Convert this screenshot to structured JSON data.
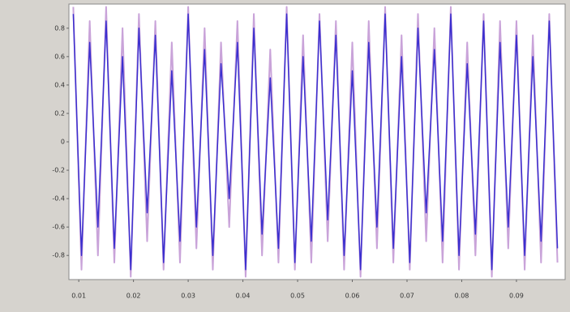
{
  "chart_data": {
    "type": "line",
    "x": [
      0.009,
      0.0105,
      0.012,
      0.0135,
      0.015,
      0.0165,
      0.018,
      0.0195,
      0.021,
      0.0225,
      0.024,
      0.0255,
      0.027,
      0.0285,
      0.03,
      0.0315,
      0.033,
      0.0345,
      0.036,
      0.0375,
      0.039,
      0.0405,
      0.042,
      0.0435,
      0.045,
      0.0465,
      0.048,
      0.0495,
      0.051,
      0.0525,
      0.054,
      0.0555,
      0.057,
      0.0585,
      0.06,
      0.0615,
      0.063,
      0.0645,
      0.066,
      0.0675,
      0.069,
      0.0705,
      0.072,
      0.0735,
      0.075,
      0.0765,
      0.078,
      0.0795,
      0.081,
      0.0825,
      0.084,
      0.0855,
      0.087,
      0.0885,
      0.09,
      0.0915,
      0.093,
      0.0945,
      0.096,
      0.0975
    ],
    "series": [
      {
        "color": "#c9a3d9",
        "values": [
          0.95,
          -0.9,
          0.85,
          -0.8,
          0.95,
          -0.85,
          0.8,
          -0.95,
          0.9,
          -0.7,
          0.85,
          -0.9,
          0.7,
          -0.85,
          0.95,
          -0.75,
          0.8,
          -0.9,
          0.7,
          -0.6,
          0.85,
          -0.95,
          0.9,
          -0.8,
          0.65,
          -0.85,
          0.95,
          -0.9,
          0.75,
          -0.85,
          0.9,
          -0.7,
          0.85,
          -0.9,
          0.7,
          -0.95,
          0.85,
          -0.75,
          0.95,
          -0.85,
          0.75,
          -0.9,
          0.9,
          -0.7,
          0.8,
          -0.85,
          0.95,
          -0.9,
          0.7,
          -0.8,
          0.9,
          -0.95,
          0.85,
          -0.75,
          0.85,
          -0.9,
          0.75,
          -0.85,
          0.9,
          -0.85
        ]
      },
      {
        "color": "#3b2fcf",
        "values": [
          0.9,
          -0.8,
          0.7,
          -0.6,
          0.85,
          -0.75,
          0.6,
          -0.9,
          0.8,
          -0.5,
          0.75,
          -0.85,
          0.5,
          -0.7,
          0.9,
          -0.6,
          0.65,
          -0.8,
          0.55,
          -0.4,
          0.7,
          -0.9,
          0.8,
          -0.65,
          0.45,
          -0.75,
          0.9,
          -0.85,
          0.6,
          -0.7,
          0.85,
          -0.55,
          0.75,
          -0.8,
          0.5,
          -0.9,
          0.7,
          -0.6,
          0.9,
          -0.75,
          0.6,
          -0.85,
          0.8,
          -0.5,
          0.65,
          -0.7,
          0.9,
          -0.8,
          0.55,
          -0.65,
          0.85,
          -0.9,
          0.7,
          -0.6,
          0.75,
          -0.8,
          0.6,
          -0.7,
          0.85,
          -0.75
        ]
      }
    ],
    "xlim": [
      0.0082,
      0.0989
    ],
    "xticks": [
      0.01,
      0.02,
      0.03,
      0.04,
      0.05,
      0.06,
      0.07,
      0.08,
      0.09
    ],
    "ylim": [
      -0.97,
      0.97
    ],
    "yticks": [
      0.8,
      0.6,
      0.4,
      0.2,
      0,
      -0.2,
      -0.4,
      -0.6,
      -0.8
    ]
  }
}
